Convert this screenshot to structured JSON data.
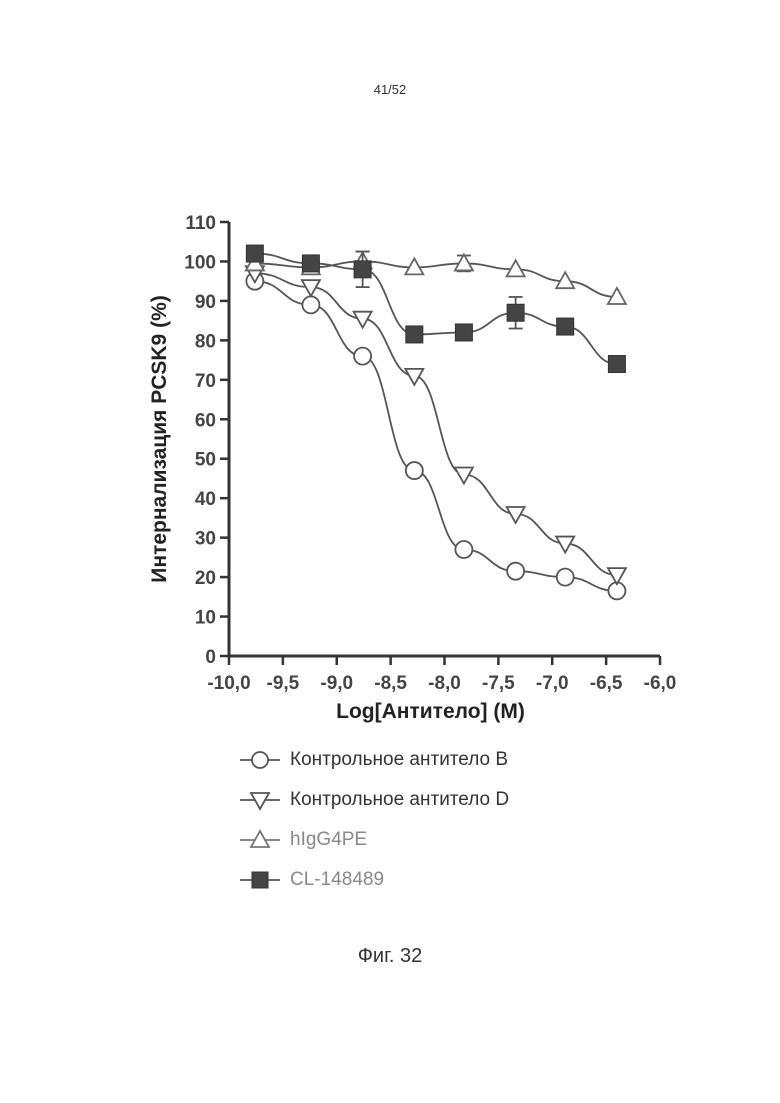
{
  "page_number": "41/52",
  "figure_caption": "Фиг. 32",
  "chart_data": {
    "type": "line",
    "title": "",
    "xlabel": "Log[Антитело] (M)",
    "ylabel": "Интернализация PCSK9 (%)",
    "xlim": [
      -10.0,
      -6.0
    ],
    "ylim": [
      0,
      110
    ],
    "x_ticks": [
      -10.0,
      -9.5,
      -9.0,
      -8.5,
      -8.0,
      -7.5,
      -7.0,
      -6.5,
      -6.0
    ],
    "x_tick_labels": [
      "-10,0",
      "-9,5",
      "-9,0",
      "-8,5",
      "-8,0",
      "-7,5",
      "-7,0",
      "-6,5",
      "-6,0"
    ],
    "y_ticks": [
      0,
      10,
      20,
      30,
      40,
      50,
      60,
      70,
      80,
      90,
      100,
      110
    ],
    "y_tick_labels": [
      "0",
      "10",
      "20",
      "30",
      "40",
      "50",
      "60",
      "70",
      "80",
      "90",
      "100",
      "110"
    ],
    "grid": false,
    "legend_position": "below",
    "series": [
      {
        "name": "Контрольное антитело B",
        "marker": "circle-open",
        "x": [
          -9.76,
          -9.24,
          -8.76,
          -8.28,
          -7.82,
          -7.34,
          -6.88,
          -6.4
        ],
        "y": [
          95,
          89,
          76,
          47,
          27,
          21.5,
          20,
          16.5
        ]
      },
      {
        "name": "Контрольное антитело D",
        "marker": "triangle-down-open",
        "x": [
          -9.76,
          -9.24,
          -8.76,
          -8.28,
          -7.82,
          -7.34,
          -6.88,
          -6.4
        ],
        "y": [
          97,
          93.5,
          85.5,
          71,
          46,
          36,
          28.5,
          20.5
        ]
      },
      {
        "name": "hIgG4PE",
        "marker": "triangle-up-open",
        "x": [
          -9.76,
          -9.24,
          -8.76,
          -8.28,
          -7.82,
          -7.34,
          -6.88,
          -6.4
        ],
        "y": [
          99.5,
          98.5,
          100,
          98.5,
          99.5,
          98,
          95,
          91
        ],
        "error": [
          0,
          0,
          2.5,
          0,
          2,
          0,
          0,
          0
        ]
      },
      {
        "name": "CL-148489",
        "marker": "square-filled",
        "x": [
          -9.76,
          -9.24,
          -8.76,
          -8.28,
          -7.82,
          -7.34,
          -6.88,
          -6.4
        ],
        "y": [
          102,
          99.5,
          98,
          81.5,
          82,
          87,
          83.5,
          74
        ],
        "error": [
          0,
          0,
          4.5,
          0,
          0,
          4,
          0,
          0
        ]
      }
    ]
  }
}
